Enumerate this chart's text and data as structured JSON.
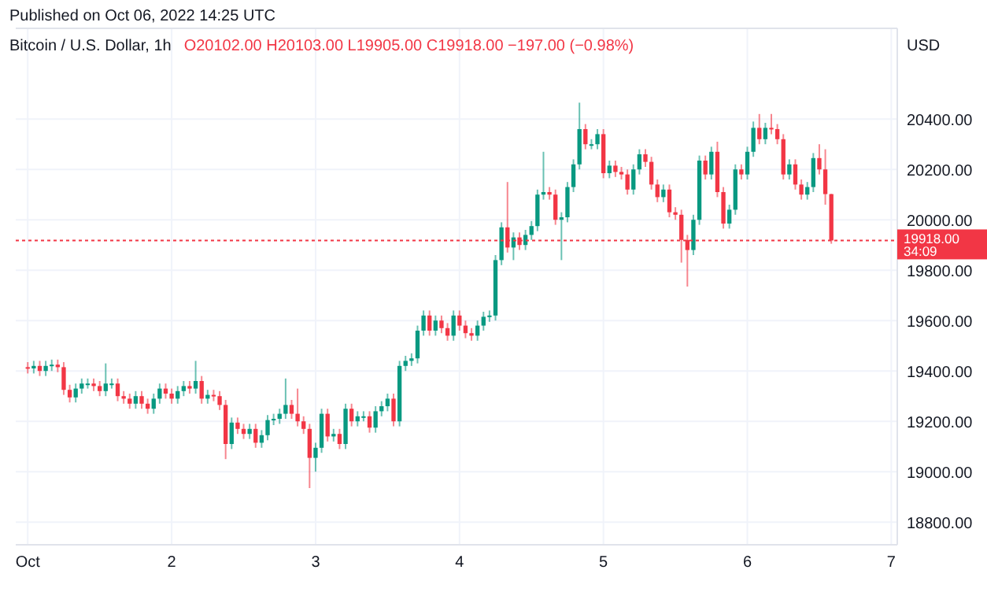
{
  "chart_data": {
    "type": "candlestick",
    "title": "Bitcoin / U.S. Dollar, 1h",
    "subtitle": "O20102.00 H20103.00 L19905.00 C19918.00 −197.00 (−0.98%)",
    "ylabel": "USD",
    "annotations": [
      "Published on Oct 06, 2022 14:25 UTC",
      "34:09"
    ],
    "xlim": [
      "2022-09-30T22:00",
      "2022-10-07T01:00"
    ],
    "xticks": [
      {
        "value": "2022-10-01",
        "label": "Oct"
      },
      {
        "value": "2022-10-02",
        "label": "2"
      },
      {
        "value": "2022-10-03",
        "label": "3"
      },
      {
        "value": "2022-10-04",
        "label": "4"
      },
      {
        "value": "2022-10-05",
        "label": "5"
      },
      {
        "value": "2022-10-06",
        "label": "6"
      },
      {
        "value": "2022-10-07",
        "label": "7"
      }
    ],
    "ylim": [
      18710,
      20760
    ],
    "yticks": [
      {
        "value": 18800,
        "label": "18800.00"
      },
      {
        "value": 19000,
        "label": "19000.00"
      },
      {
        "value": 19200,
        "label": "19200.00"
      },
      {
        "value": 19400,
        "label": "19400.00"
      },
      {
        "value": 19600,
        "label": "19600.00"
      },
      {
        "value": 19800,
        "label": "19800.00"
      },
      {
        "value": 20000,
        "label": "20000.00"
      },
      {
        "value": 20200,
        "label": "20200.00"
      },
      {
        "value": 20400,
        "label": "20400.00"
      }
    ],
    "grid": true,
    "ref_lines": [
      {
        "axis": "y",
        "value": 19918,
        "label": "19918.00",
        "color": "#f23645",
        "line_style": "dotted"
      }
    ],
    "x": [
      "2022-10-01T00:00",
      "2022-10-01T01:00",
      "2022-10-01T02:00",
      "2022-10-01T03:00",
      "2022-10-01T04:00",
      "2022-10-01T05:00",
      "2022-10-01T06:00",
      "2022-10-01T07:00",
      "2022-10-01T08:00",
      "2022-10-01T09:00",
      "2022-10-01T10:00",
      "2022-10-01T11:00",
      "2022-10-01T12:00",
      "2022-10-01T13:00",
      "2022-10-01T14:00",
      "2022-10-01T15:00",
      "2022-10-01T16:00",
      "2022-10-01T17:00",
      "2022-10-01T18:00",
      "2022-10-01T19:00",
      "2022-10-01T20:00",
      "2022-10-01T21:00",
      "2022-10-01T22:00",
      "2022-10-01T23:00",
      "2022-10-02T00:00",
      "2022-10-02T01:00",
      "2022-10-02T02:00",
      "2022-10-02T03:00",
      "2022-10-02T04:00",
      "2022-10-02T05:00",
      "2022-10-02T06:00",
      "2022-10-02T07:00",
      "2022-10-02T08:00",
      "2022-10-02T09:00",
      "2022-10-02T10:00",
      "2022-10-02T11:00",
      "2022-10-02T12:00",
      "2022-10-02T13:00",
      "2022-10-02T14:00",
      "2022-10-02T15:00",
      "2022-10-02T16:00",
      "2022-10-02T17:00",
      "2022-10-02T18:00",
      "2022-10-02T19:00",
      "2022-10-02T20:00",
      "2022-10-02T21:00",
      "2022-10-02T22:00",
      "2022-10-02T23:00",
      "2022-10-03T00:00",
      "2022-10-03T01:00",
      "2022-10-03T02:00",
      "2022-10-03T03:00",
      "2022-10-03T04:00",
      "2022-10-03T05:00",
      "2022-10-03T06:00",
      "2022-10-03T07:00",
      "2022-10-03T08:00",
      "2022-10-03T09:00",
      "2022-10-03T10:00",
      "2022-10-03T11:00",
      "2022-10-03T12:00",
      "2022-10-03T13:00",
      "2022-10-03T14:00",
      "2022-10-03T15:00",
      "2022-10-03T16:00",
      "2022-10-03T17:00",
      "2022-10-03T18:00",
      "2022-10-03T19:00",
      "2022-10-03T20:00",
      "2022-10-03T21:00",
      "2022-10-03T22:00",
      "2022-10-03T23:00",
      "2022-10-04T00:00",
      "2022-10-04T01:00",
      "2022-10-04T02:00",
      "2022-10-04T03:00",
      "2022-10-04T04:00",
      "2022-10-04T05:00",
      "2022-10-04T06:00",
      "2022-10-04T07:00",
      "2022-10-04T08:00",
      "2022-10-04T09:00",
      "2022-10-04T10:00",
      "2022-10-04T11:00",
      "2022-10-04T12:00",
      "2022-10-04T13:00",
      "2022-10-04T14:00",
      "2022-10-04T15:00",
      "2022-10-04T16:00",
      "2022-10-04T17:00",
      "2022-10-04T18:00",
      "2022-10-04T19:00",
      "2022-10-04T20:00",
      "2022-10-04T21:00",
      "2022-10-04T22:00",
      "2022-10-04T23:00",
      "2022-10-05T00:00",
      "2022-10-05T01:00",
      "2022-10-05T02:00",
      "2022-10-05T03:00",
      "2022-10-05T04:00",
      "2022-10-05T05:00",
      "2022-10-05T06:00",
      "2022-10-05T07:00",
      "2022-10-05T08:00",
      "2022-10-05T09:00",
      "2022-10-05T10:00",
      "2022-10-05T11:00",
      "2022-10-05T12:00",
      "2022-10-05T13:00",
      "2022-10-05T14:00",
      "2022-10-05T15:00",
      "2022-10-05T16:00",
      "2022-10-05T17:00",
      "2022-10-05T18:00",
      "2022-10-05T19:00",
      "2022-10-05T20:00",
      "2022-10-05T21:00",
      "2022-10-05T22:00",
      "2022-10-05T23:00",
      "2022-10-06T00:00",
      "2022-10-06T01:00",
      "2022-10-06T02:00",
      "2022-10-06T03:00",
      "2022-10-06T04:00",
      "2022-10-06T05:00",
      "2022-10-06T06:00",
      "2022-10-06T07:00",
      "2022-10-06T08:00",
      "2022-10-06T09:00",
      "2022-10-06T10:00",
      "2022-10-06T11:00",
      "2022-10-06T12:00",
      "2022-10-06T13:00",
      "2022-10-06T14:00"
    ],
    "ohlc": [
      [
        19415,
        19435,
        19390,
        19410
      ],
      [
        19410,
        19440,
        19390,
        19420
      ],
      [
        19420,
        19440,
        19380,
        19400
      ],
      [
        19400,
        19440,
        19380,
        19420
      ],
      [
        19420,
        19445,
        19400,
        19425
      ],
      [
        19425,
        19445,
        19395,
        19415
      ],
      [
        19415,
        19435,
        19305,
        19325
      ],
      [
        19325,
        19345,
        19275,
        19295
      ],
      [
        19295,
        19350,
        19275,
        19330
      ],
      [
        19330,
        19370,
        19310,
        19350
      ],
      [
        19350,
        19370,
        19330,
        19350
      ],
      [
        19350,
        19370,
        19320,
        19340
      ],
      [
        19340,
        19360,
        19300,
        19320
      ],
      [
        19320,
        19430,
        19300,
        19350
      ],
      [
        19350,
        19370,
        19330,
        19350
      ],
      [
        19350,
        19370,
        19280,
        19300
      ],
      [
        19300,
        19320,
        19270,
        19290
      ],
      [
        19290,
        19310,
        19250,
        19270
      ],
      [
        19270,
        19320,
        19250,
        19300
      ],
      [
        19300,
        19320,
        19250,
        19270
      ],
      [
        19270,
        19290,
        19230,
        19250
      ],
      [
        19250,
        19310,
        19230,
        19290
      ],
      [
        19290,
        19350,
        19270,
        19330
      ],
      [
        19330,
        19350,
        19290,
        19310
      ],
      [
        19310,
        19330,
        19270,
        19290
      ],
      [
        19290,
        19340,
        19270,
        19320
      ],
      [
        19320,
        19360,
        19300,
        19340
      ],
      [
        19340,
        19360,
        19310,
        19330
      ],
      [
        19330,
        19440,
        19310,
        19360
      ],
      [
        19360,
        19380,
        19270,
        19290
      ],
      [
        19290,
        19325,
        19270,
        19305
      ],
      [
        19305,
        19325,
        19280,
        19300
      ],
      [
        19300,
        19320,
        19245,
        19265
      ],
      [
        19265,
        19285,
        19050,
        19110
      ],
      [
        19110,
        19215,
        19090,
        19195
      ],
      [
        19195,
        19215,
        19150,
        19170
      ],
      [
        19170,
        19190,
        19130,
        19150
      ],
      [
        19150,
        19190,
        19130,
        19170
      ],
      [
        19170,
        19190,
        19095,
        19115
      ],
      [
        19115,
        19165,
        19095,
        19145
      ],
      [
        19145,
        19225,
        19125,
        19205
      ],
      [
        19205,
        19230,
        19185,
        19210
      ],
      [
        19210,
        19250,
        19190,
        19230
      ],
      [
        19230,
        19370,
        19210,
        19265
      ],
      [
        19265,
        19285,
        19210,
        19230
      ],
      [
        19230,
        19330,
        19180,
        19200
      ],
      [
        19200,
        19220,
        19150,
        19170
      ],
      [
        19170,
        19190,
        18935,
        19055
      ],
      [
        19055,
        19115,
        19000,
        19095
      ],
      [
        19095,
        19250,
        19075,
        19230
      ],
      [
        19230,
        19250,
        19120,
        19140
      ],
      [
        19140,
        19170,
        19120,
        19150
      ],
      [
        19150,
        19170,
        19090,
        19110
      ],
      [
        19110,
        19270,
        19090,
        19250
      ],
      [
        19250,
        19270,
        19180,
        19200
      ],
      [
        19200,
        19240,
        19180,
        19220
      ],
      [
        19220,
        19240,
        19200,
        19220
      ],
      [
        19220,
        19240,
        19155,
        19175
      ],
      [
        19175,
        19260,
        19155,
        19240
      ],
      [
        19240,
        19280,
        19220,
        19260
      ],
      [
        19260,
        19310,
        19240,
        19290
      ],
      [
        19290,
        19310,
        19180,
        19200
      ],
      [
        19200,
        19440,
        19180,
        19420
      ],
      [
        19420,
        19460,
        19400,
        19440
      ],
      [
        19440,
        19470,
        19420,
        19450
      ],
      [
        19450,
        19580,
        19430,
        19560
      ],
      [
        19560,
        19640,
        19540,
        19620
      ],
      [
        19620,
        19640,
        19540,
        19560
      ],
      [
        19560,
        19620,
        19540,
        19600
      ],
      [
        19600,
        19620,
        19550,
        19570
      ],
      [
        19570,
        19590,
        19520,
        19540
      ],
      [
        19540,
        19640,
        19520,
        19620
      ],
      [
        19620,
        19640,
        19560,
        19580
      ],
      [
        19580,
        19600,
        19530,
        19550
      ],
      [
        19550,
        19570,
        19520,
        19540
      ],
      [
        19540,
        19600,
        19520,
        19580
      ],
      [
        19580,
        19635,
        19560,
        19615
      ],
      [
        19615,
        19640,
        19595,
        19620
      ],
      [
        19620,
        19860,
        19600,
        19840
      ],
      [
        19840,
        19990,
        19820,
        19970
      ],
      [
        19970,
        20150,
        19870,
        19890
      ],
      [
        19890,
        19950,
        19840,
        19930
      ],
      [
        19930,
        19950,
        19880,
        19900
      ],
      [
        19900,
        19960,
        19880,
        19940
      ],
      [
        19940,
        19995,
        19920,
        19975
      ],
      [
        19975,
        20120,
        19955,
        20100
      ],
      [
        20100,
        20270,
        20080,
        20110
      ],
      [
        20110,
        20130,
        20080,
        20100
      ],
      [
        20100,
        20120,
        19980,
        20000
      ],
      [
        20000,
        20030,
        19840,
        20010
      ],
      [
        20010,
        20150,
        19990,
        20130
      ],
      [
        20130,
        20240,
        20110,
        20220
      ],
      [
        20220,
        20465,
        20200,
        20360
      ],
      [
        20360,
        20380,
        20280,
        20300
      ],
      [
        20300,
        20320,
        20280,
        20300
      ],
      [
        20300,
        20360,
        20280,
        20340
      ],
      [
        20340,
        20360,
        20165,
        20185
      ],
      [
        20185,
        20235,
        20165,
        20215
      ],
      [
        20215,
        20235,
        20170,
        20190
      ],
      [
        20190,
        20210,
        20160,
        20180
      ],
      [
        20180,
        20200,
        20100,
        20120
      ],
      [
        20120,
        20220,
        20100,
        20200
      ],
      [
        20200,
        20280,
        20180,
        20260
      ],
      [
        20260,
        20280,
        20210,
        20230
      ],
      [
        20230,
        20250,
        20120,
        20140
      ],
      [
        20140,
        20160,
        20070,
        20090
      ],
      [
        20090,
        20140,
        20070,
        20120
      ],
      [
        20120,
        20140,
        20010,
        20030
      ],
      [
        20030,
        20050,
        20000,
        20020
      ],
      [
        20020,
        20040,
        19830,
        19920
      ],
      [
        19920,
        19940,
        19735,
        19880
      ],
      [
        19880,
        20020,
        19860,
        20000
      ],
      [
        20000,
        20255,
        19980,
        20235
      ],
      [
        20235,
        20255,
        20160,
        20180
      ],
      [
        20180,
        20290,
        20160,
        20270
      ],
      [
        20270,
        20310,
        20090,
        20110
      ],
      [
        20110,
        20130,
        19965,
        19985
      ],
      [
        19985,
        20060,
        19965,
        20040
      ],
      [
        20040,
        20220,
        20020,
        20200
      ],
      [
        20200,
        20220,
        20160,
        20180
      ],
      [
        20180,
        20290,
        20160,
        20270
      ],
      [
        20270,
        20390,
        20250,
        20365
      ],
      [
        20365,
        20420,
        20300,
        20320
      ],
      [
        20320,
        20385,
        20300,
        20365
      ],
      [
        20365,
        20420,
        20340,
        20360
      ],
      [
        20360,
        20380,
        20300,
        20320
      ],
      [
        20320,
        20340,
        20160,
        20180
      ],
      [
        20180,
        20240,
        20160,
        20220
      ],
      [
        20220,
        20240,
        20120,
        20140
      ],
      [
        20140,
        20160,
        20080,
        20100
      ],
      [
        20100,
        20150,
        20080,
        20130
      ],
      [
        20130,
        20265,
        20110,
        20245
      ],
      [
        20245,
        20300,
        20180,
        20200
      ],
      [
        20200,
        20280,
        20060,
        20102
      ],
      [
        20102,
        20103,
        19905,
        19918
      ]
    ]
  }
}
